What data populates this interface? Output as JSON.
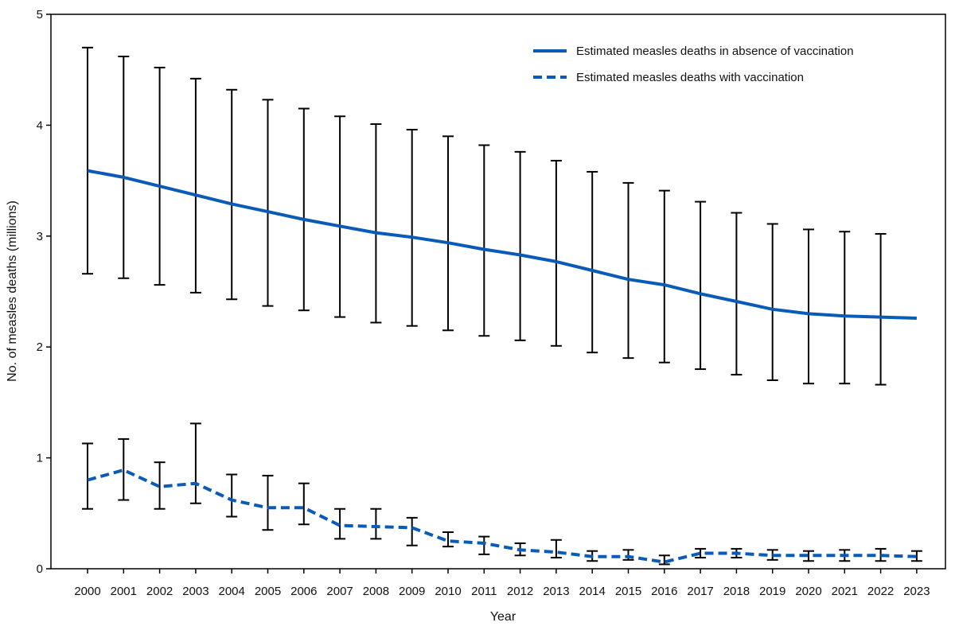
{
  "chart_data": {
    "type": "line",
    "title": "",
    "xlabel": "Year",
    "ylabel": "No. of measles deaths (millions)",
    "ylim": [
      0,
      5
    ],
    "yticks": [
      0,
      1,
      2,
      3,
      4,
      5
    ],
    "grid": false,
    "legend_position": "top-right",
    "categories": [
      "2000",
      "2001",
      "2002",
      "2003",
      "2004",
      "2005",
      "2006",
      "2007",
      "2008",
      "2009",
      "2010",
      "2011",
      "2012",
      "2013",
      "2014",
      "2015",
      "2016",
      "2017",
      "2018",
      "2019",
      "2020",
      "2021",
      "2022",
      "2023"
    ],
    "series": [
      {
        "name": "Estimated measles deaths in absence of vaccination",
        "style": "solid",
        "color": "#0a5bb8",
        "values": [
          3.59,
          3.53,
          3.45,
          3.37,
          3.29,
          3.22,
          3.15,
          3.09,
          3.03,
          2.99,
          2.94,
          2.88,
          2.83,
          2.77,
          2.69,
          2.61,
          2.56,
          2.48,
          2.41,
          2.34,
          2.3,
          2.28,
          2.27,
          2.26
        ],
        "lower": [
          2.66,
          2.62,
          2.56,
          2.49,
          2.43,
          2.37,
          2.33,
          2.27,
          2.22,
          2.19,
          2.15,
          2.1,
          2.06,
          2.01,
          1.95,
          1.9,
          1.86,
          1.8,
          1.75,
          1.7,
          1.67,
          1.67,
          1.66,
          null
        ],
        "upper": [
          4.7,
          4.62,
          4.52,
          4.42,
          4.32,
          4.23,
          4.15,
          4.08,
          4.01,
          3.96,
          3.9,
          3.82,
          3.76,
          3.68,
          3.58,
          3.48,
          3.41,
          3.31,
          3.21,
          3.11,
          3.06,
          3.04,
          3.02,
          null
        ]
      },
      {
        "name": "Estimated measles deaths with vaccination",
        "style": "dashed",
        "color": "#0a5bb8",
        "values": [
          0.8,
          0.89,
          0.74,
          0.77,
          0.62,
          0.55,
          0.55,
          0.39,
          0.38,
          0.37,
          0.25,
          0.23,
          0.17,
          0.15,
          0.11,
          0.11,
          0.06,
          0.14,
          0.14,
          0.12,
          0.12,
          0.12,
          0.12,
          0.11
        ],
        "lower": [
          0.54,
          0.62,
          0.54,
          0.59,
          0.47,
          0.35,
          0.4,
          0.27,
          0.27,
          0.21,
          0.2,
          0.13,
          0.12,
          0.1,
          0.07,
          0.08,
          0.04,
          0.1,
          0.1,
          0.08,
          0.07,
          0.07,
          0.07,
          0.07
        ],
        "upper": [
          1.13,
          1.17,
          0.96,
          1.31,
          0.85,
          0.84,
          0.77,
          0.54,
          0.54,
          0.46,
          0.33,
          0.29,
          0.23,
          0.26,
          0.16,
          0.17,
          0.12,
          0.18,
          0.18,
          0.17,
          0.16,
          0.17,
          0.18,
          0.16
        ]
      }
    ]
  }
}
